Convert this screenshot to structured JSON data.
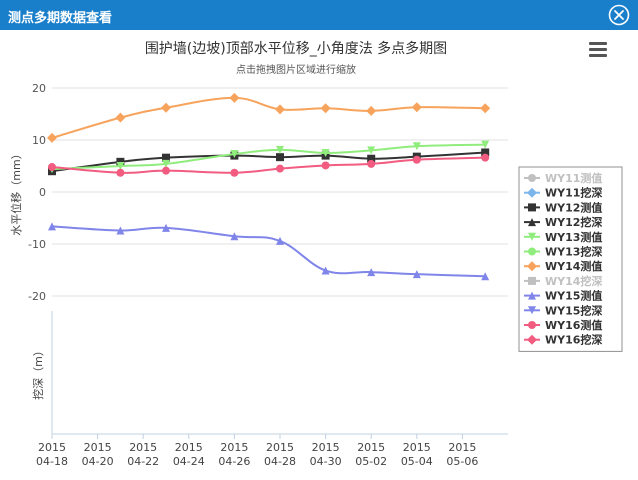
{
  "window": {
    "title": "测点多期数据查看",
    "close_icon": "close-icon"
  },
  "chart_data": {
    "type": "line",
    "title": "围护墙(边坡)顶部水平位移_小角度法 多点多期图",
    "subtitle": "点击拖拽图片区域进行缩放",
    "menu_icon": "hamburger-menu-icon",
    "xlabel": "",
    "ylabel_top": "水平位移（mm）",
    "ylabel_bottom": "挖深（m）",
    "ylim_top": [
      -20,
      20
    ],
    "yticks_top": [
      20,
      10,
      0,
      -10,
      -20
    ],
    "x_range": [
      "2015-04-18",
      "2015-05-08"
    ],
    "x_ticks": [
      {
        "year": "2015",
        "date": "04-18"
      },
      {
        "year": "2015",
        "date": "04-20"
      },
      {
        "year": "2015",
        "date": "04-22"
      },
      {
        "year": "2015",
        "date": "04-24"
      },
      {
        "year": "2015",
        "date": "04-26"
      },
      {
        "year": "2015",
        "date": "04-28"
      },
      {
        "year": "2015",
        "date": "04-30"
      },
      {
        "year": "2015",
        "date": "05-02"
      },
      {
        "year": "2015",
        "date": "05-04"
      },
      {
        "year": "2015",
        "date": "05-06"
      }
    ],
    "legend_position": "right",
    "series": [
      {
        "name": "WY11测值",
        "color": "#c0c0c0",
        "marker": "circle",
        "visible": false,
        "points": []
      },
      {
        "name": "WY11挖深",
        "color": "#7cb5ec",
        "marker": "diamond",
        "visible": true,
        "points": []
      },
      {
        "name": "WY12测值",
        "color": "#333333",
        "marker": "square",
        "visible": true,
        "points": [
          {
            "x": "2015-04-18",
            "y": 4
          },
          {
            "x": "2015-04-21",
            "y": 5.8
          },
          {
            "x": "2015-04-23",
            "y": 6.6
          },
          {
            "x": "2015-04-26",
            "y": 7
          },
          {
            "x": "2015-04-28",
            "y": 6.7
          },
          {
            "x": "2015-04-30",
            "y": 7
          },
          {
            "x": "2015-05-02",
            "y": 6.4
          },
          {
            "x": "2015-05-04",
            "y": 6.8
          },
          {
            "x": "2015-05-07",
            "y": 7.6
          }
        ]
      },
      {
        "name": "WY12挖深",
        "color": "#333333",
        "marker": "triangle",
        "visible": true,
        "points": []
      },
      {
        "name": "WY13测值",
        "color": "#90ed7d",
        "marker": "triangle-down",
        "visible": true,
        "points": [
          {
            "x": "2015-04-18",
            "y": 4.4
          },
          {
            "x": "2015-04-21",
            "y": 5
          },
          {
            "x": "2015-04-23",
            "y": 5.4
          },
          {
            "x": "2015-04-26",
            "y": 7.3
          },
          {
            "x": "2015-04-28",
            "y": 8.1
          },
          {
            "x": "2015-04-30",
            "y": 7.5
          },
          {
            "x": "2015-05-02",
            "y": 8
          },
          {
            "x": "2015-05-04",
            "y": 8.8
          },
          {
            "x": "2015-05-07",
            "y": 9.1
          }
        ]
      },
      {
        "name": "WY13挖深",
        "color": "#90ed7d",
        "marker": "circle",
        "visible": true,
        "points": []
      },
      {
        "name": "WY14测值",
        "color": "#f7a35c",
        "marker": "diamond",
        "visible": true,
        "points": [
          {
            "x": "2015-04-18",
            "y": 10.4
          },
          {
            "x": "2015-04-21",
            "y": 14.3
          },
          {
            "x": "2015-04-23",
            "y": 16.2
          },
          {
            "x": "2015-04-26",
            "y": 18.1
          },
          {
            "x": "2015-04-28",
            "y": 15.9
          },
          {
            "x": "2015-04-30",
            "y": 16.1
          },
          {
            "x": "2015-05-02",
            "y": 15.6
          },
          {
            "x": "2015-05-04",
            "y": 16.3
          },
          {
            "x": "2015-05-07",
            "y": 16.1
          }
        ]
      },
      {
        "name": "WY14挖深",
        "color": "#c0c0c0",
        "marker": "square",
        "visible": false,
        "points": []
      },
      {
        "name": "WY15测值",
        "color": "#8085e9",
        "marker": "triangle",
        "visible": true,
        "points": [
          {
            "x": "2015-04-18",
            "y": -6.6
          },
          {
            "x": "2015-04-21",
            "y": -7.4
          },
          {
            "x": "2015-04-23",
            "y": -6.9
          },
          {
            "x": "2015-04-26",
            "y": -8.5
          },
          {
            "x": "2015-04-28",
            "y": -9.4
          },
          {
            "x": "2015-04-30",
            "y": -15.1
          },
          {
            "x": "2015-05-02",
            "y": -15.4
          },
          {
            "x": "2015-05-04",
            "y": -15.8
          },
          {
            "x": "2015-05-07",
            "y": -16.2
          }
        ]
      },
      {
        "name": "WY15挖深",
        "color": "#8085e9",
        "marker": "triangle-down",
        "visible": true,
        "points": []
      },
      {
        "name": "WY16测值",
        "color": "#f15c80",
        "marker": "circle",
        "visible": true,
        "points": [
          {
            "x": "2015-04-18",
            "y": 4.8
          },
          {
            "x": "2015-04-21",
            "y": 3.7
          },
          {
            "x": "2015-04-23",
            "y": 4.1
          },
          {
            "x": "2015-04-26",
            "y": 3.7
          },
          {
            "x": "2015-04-28",
            "y": 4.5
          },
          {
            "x": "2015-04-30",
            "y": 5.1
          },
          {
            "x": "2015-05-02",
            "y": 5.4
          },
          {
            "x": "2015-05-04",
            "y": 6.2
          },
          {
            "x": "2015-05-07",
            "y": 6.6
          }
        ]
      },
      {
        "name": "WY16挖深",
        "color": "#f15c80",
        "marker": "diamond",
        "visible": true,
        "points": []
      }
    ]
  }
}
